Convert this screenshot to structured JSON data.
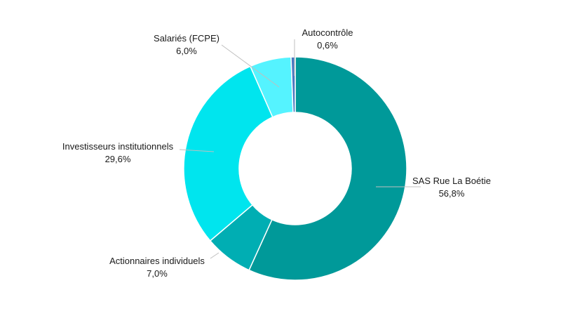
{
  "chart_data": {
    "type": "pie",
    "donut": true,
    "title": "",
    "slices": [
      {
        "name": "SAS Rue La Boétie",
        "value": 56.8,
        "value_label": "56,8%",
        "color": "#009999"
      },
      {
        "name": "Actionnaires individuels",
        "value": 7.0,
        "value_label": "7,0%",
        "color": "#00AEB3"
      },
      {
        "name": "Investisseurs institutionnels",
        "value": 29.6,
        "value_label": "29,6%",
        "color": "#00E5EE"
      },
      {
        "name": "Salariés (FCPE)",
        "value": 6.0,
        "value_label": "6,0%",
        "color": "#55F3FF"
      },
      {
        "name": "Autocontrôle",
        "value": 0.6,
        "value_label": "0,6%",
        "color": "#4A78C0"
      }
    ]
  }
}
